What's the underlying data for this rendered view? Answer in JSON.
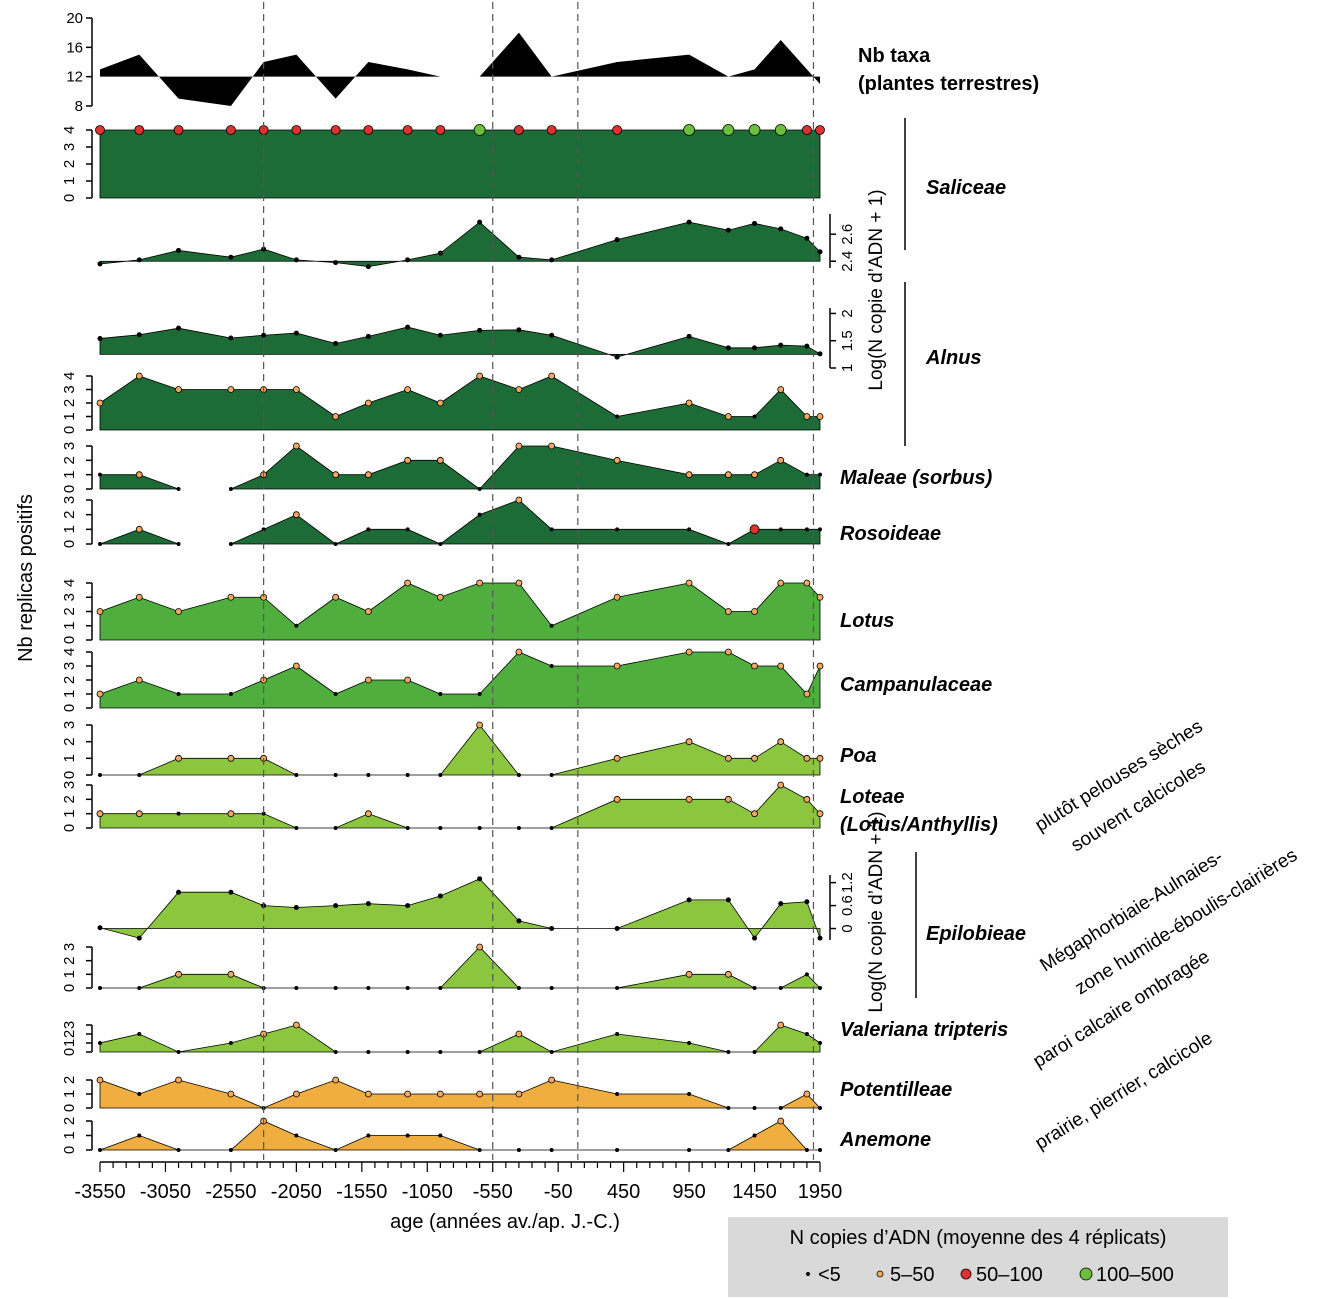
{
  "chart_data": {
    "type": "area",
    "xlabel": "age (années av./ap. J.-C.)",
    "ylabel": "Nb replicas positifs",
    "ylabel_right": "Log(N copie d’ADN + 1)",
    "x_ticks": [
      "-3550",
      "-3050",
      "-2550",
      "-2050",
      "-1550",
      "-1050",
      "-550",
      "-50",
      "450",
      "950",
      "1450",
      "1950"
    ],
    "xlim": [
      -3550,
      1950
    ],
    "x": [
      -3550,
      -3250,
      -2950,
      -2550,
      -2300,
      -2050,
      -1750,
      -1500,
      -1200,
      -950,
      -650,
      -350,
      -100,
      400,
      950,
      1250,
      1450,
      1650,
      1850,
      1950
    ],
    "vlines": [
      -2300,
      -550,
      100,
      1900
    ],
    "taxa_row": {
      "title": "Nb taxa (plantes terrestres)",
      "y_ticks": [
        "20",
        "16",
        "12",
        "8"
      ],
      "ylim": [
        8,
        20
      ],
      "baseline": 12,
      "values": [
        13,
        15,
        9,
        8,
        14,
        15,
        9,
        14,
        13,
        12,
        12,
        18,
        12,
        14,
        15,
        12,
        13,
        17,
        13,
        11
      ]
    },
    "legend": {
      "title": "N copies d’ADN (moyenne des 4 réplicats)",
      "items": [
        {
          "label": "<5",
          "code": 0,
          "color": "#000000"
        },
        {
          "label": "5–50",
          "code": 1,
          "color": "#f5a860"
        },
        {
          "label": "50–100",
          "code": 2,
          "color": "#e03030"
        },
        {
          "label": "100–500",
          "code": 3,
          "color": "#6cbf3c"
        }
      ]
    },
    "group_labels": [
      {
        "text": "plutôt pelouses sèches souvent calcicoles"
      },
      {
        "text": "Mégaphorbiaie-Aulnaies- zone humide-éboulis-clairières"
      },
      {
        "text": "paroi calcaire ombragée"
      },
      {
        "text": "prairie, pierrier, calcicole"
      }
    ],
    "series": [
      {
        "name": "Saliceae",
        "kind": "replicates",
        "color": "#1d6b37",
        "y_ticks": [
          "0",
          "1",
          "2",
          "3",
          "4"
        ],
        "ylim": [
          0,
          4
        ],
        "values": [
          4,
          4,
          4,
          4,
          4,
          4,
          4,
          4,
          4,
          4,
          4,
          4,
          4,
          4,
          4,
          4,
          4,
          4,
          4,
          4
        ],
        "dots": [
          2,
          2,
          2,
          2,
          2,
          2,
          2,
          2,
          2,
          2,
          3,
          2,
          2,
          2,
          3,
          3,
          3,
          3,
          2,
          2
        ]
      },
      {
        "name": "Saliceae",
        "kind": "log",
        "color": "#1d6b37",
        "y_ticks": [
          "2.4",
          "2.6"
        ],
        "ylim": [
          2.35,
          2.75
        ],
        "baseline": 2.4,
        "values": [
          2.38,
          2.41,
          2.48,
          2.43,
          2.49,
          2.41,
          2.39,
          2.36,
          2.41,
          2.46,
          2.69,
          2.43,
          2.41,
          2.56,
          2.69,
          2.63,
          2.68,
          2.64,
          2.57,
          2.47
        ]
      },
      {
        "name": "Alnus",
        "kind": "log",
        "color": "#1d6b37",
        "y_ticks": [
          "1",
          "1.5",
          "2"
        ],
        "ylim": [
          1,
          2.1
        ],
        "baseline": 1.25,
        "values": [
          1.54,
          1.61,
          1.73,
          1.55,
          1.6,
          1.64,
          1.45,
          1.58,
          1.75,
          1.6,
          1.69,
          1.7,
          1.6,
          1.2,
          1.58,
          1.37,
          1.37,
          1.42,
          1.4,
          1.26
        ]
      },
      {
        "name": "Alnus",
        "kind": "replicates",
        "color": "#1d6b37",
        "y_ticks": [
          "0",
          "1",
          "2",
          "3",
          "4"
        ],
        "ylim": [
          0,
          4
        ],
        "values": [
          2,
          4,
          3,
          3,
          3,
          3,
          1,
          2,
          3,
          2,
          4,
          3,
          4,
          1,
          2,
          1,
          1,
          3,
          1,
          1
        ],
        "dots": [
          1,
          1,
          1,
          1,
          1,
          1,
          1,
          1,
          1,
          1,
          1,
          1,
          1,
          0,
          1,
          1,
          0,
          1,
          1,
          1
        ]
      },
      {
        "name": "Maleae (sorbus)",
        "kind": "replicates",
        "color": "#1d6b37",
        "y_ticks": [
          "0",
          "1",
          "2",
          "3"
        ],
        "ylim": [
          0,
          3
        ],
        "values": [
          1,
          1,
          0,
          0,
          1,
          3,
          1,
          1,
          2,
          2,
          0,
          3,
          3,
          2,
          1,
          1,
          1,
          2,
          1,
          1
        ],
        "dots": [
          0,
          1,
          0,
          0,
          1,
          1,
          1,
          1,
          1,
          1,
          0,
          1,
          1,
          1,
          1,
          1,
          1,
          1,
          0,
          0
        ],
        "gaps": [
          2
        ]
      },
      {
        "name": "Rosoideae",
        "kind": "replicates",
        "color": "#1d6b37",
        "y_ticks": [
          "0",
          "1",
          "2",
          "3"
        ],
        "ylim": [
          0,
          3
        ],
        "values": [
          0,
          1,
          0,
          0,
          1,
          2,
          0,
          1,
          1,
          0,
          2,
          3,
          1,
          1,
          1,
          0,
          1,
          1,
          1,
          1
        ],
        "dots": [
          0,
          1,
          0,
          0,
          0,
          1,
          0,
          0,
          0,
          0,
          0,
          1,
          0,
          0,
          0,
          0,
          2,
          0,
          0,
          0
        ],
        "gaps": [
          2
        ]
      },
      {
        "name": "Lotus",
        "kind": "replicates",
        "color": "#4fae3d",
        "y_ticks": [
          "0",
          "1",
          "2",
          "3",
          "4"
        ],
        "ylim": [
          0,
          4
        ],
        "values": [
          2,
          3,
          2,
          3,
          3,
          1,
          3,
          2,
          4,
          3,
          4,
          4,
          1,
          3,
          4,
          2,
          2,
          4,
          4,
          3
        ],
        "dots": [
          1,
          1,
          1,
          1,
          1,
          0,
          1,
          1,
          1,
          1,
          1,
          1,
          0,
          1,
          1,
          1,
          1,
          1,
          1,
          1
        ]
      },
      {
        "name": "Campanulaceae",
        "kind": "replicates",
        "color": "#4fae3d",
        "y_ticks": [
          "0",
          "1",
          "2",
          "3",
          "4"
        ],
        "ylim": [
          0,
          4
        ],
        "values": [
          1,
          2,
          1,
          1,
          2,
          3,
          1,
          2,
          2,
          1,
          1,
          4,
          3,
          3,
          4,
          4,
          3,
          3,
          1,
          3
        ],
        "dots": [
          1,
          1,
          0,
          0,
          1,
          1,
          0,
          1,
          1,
          0,
          0,
          1,
          0,
          1,
          1,
          1,
          1,
          1,
          1,
          1
        ]
      },
      {
        "name": "Poa",
        "kind": "replicates",
        "color": "#8cc63f",
        "y_ticks": [
          "0",
          "1",
          "2",
          "3"
        ],
        "ylim": [
          0,
          3
        ],
        "values": [
          0,
          0,
          1,
          1,
          1,
          0,
          0,
          0,
          0,
          0,
          3,
          0,
          0,
          1,
          2,
          1,
          1,
          2,
          1,
          1
        ],
        "dots": [
          0,
          0,
          1,
          1,
          1,
          0,
          0,
          0,
          0,
          0,
          1,
          0,
          0,
          1,
          1,
          1,
          1,
          1,
          1,
          1
        ]
      },
      {
        "name": "Loteae (Lotus/Anthyllis)",
        "kind": "replicates",
        "color": "#8cc63f",
        "y_ticks": [
          "0",
          "1",
          "2",
          "3"
        ],
        "ylim": [
          0,
          3
        ],
        "values": [
          1,
          1,
          1,
          1,
          1,
          0,
          0,
          1,
          0,
          0,
          0,
          0,
          0,
          2,
          2,
          2,
          1,
          3,
          2,
          1
        ],
        "dots": [
          1,
          1,
          0,
          1,
          0,
          0,
          0,
          1,
          0,
          0,
          0,
          0,
          0,
          1,
          1,
          1,
          1,
          1,
          1,
          1
        ]
      },
      {
        "name": "Epilobieae",
        "kind": "log",
        "color": "#8cc63f",
        "y_ticks": [
          "0",
          "0.6",
          "1.2"
        ],
        "ylim": [
          -0.3,
          1.4
        ],
        "baseline": 0,
        "values": [
          0.02,
          -0.25,
          0.95,
          0.95,
          0.6,
          0.55,
          0.6,
          0.65,
          0.6,
          0.85,
          1.3,
          0.2,
          0,
          0,
          0.75,
          0.75,
          -0.25,
          0.65,
          0.7,
          -0.25
        ]
      },
      {
        "name": "Epilobieae",
        "kind": "replicates",
        "color": "#8cc63f",
        "y_ticks": [
          "0",
          "1",
          "2",
          "3"
        ],
        "ylim": [
          0,
          3
        ],
        "values": [
          0,
          0,
          1,
          1,
          0,
          0,
          0,
          0,
          0,
          0,
          3,
          0,
          0,
          0,
          1,
          1,
          0,
          0,
          1,
          0
        ],
        "dots": [
          0,
          0,
          1,
          1,
          0,
          0,
          0,
          0,
          0,
          0,
          1,
          0,
          0,
          0,
          1,
          1,
          0,
          0,
          0,
          0
        ]
      },
      {
        "name": "Valeriana tripteris",
        "kind": "replicates",
        "color": "#8cc63f",
        "y_ticks": [
          "0",
          "1",
          "2",
          "3"
        ],
        "ylim": [
          0,
          3
        ],
        "values": [
          1,
          2,
          0,
          1,
          2,
          3,
          0,
          0,
          0,
          0,
          0,
          2,
          0,
          2,
          1,
          0,
          0,
          3,
          2,
          1
        ],
        "dots": [
          0,
          0,
          0,
          0,
          1,
          1,
          0,
          0,
          0,
          0,
          0,
          1,
          0,
          0,
          0,
          0,
          0,
          1,
          0,
          0
        ]
      },
      {
        "name": "Potentilleae",
        "kind": "replicates",
        "color": "#f0ad40",
        "y_ticks": [
          "0",
          "1",
          "2"
        ],
        "ylim": [
          0,
          2
        ],
        "values": [
          2,
          1,
          2,
          1,
          0,
          1,
          2,
          1,
          1,
          1,
          1,
          1,
          2,
          1,
          1,
          0,
          0,
          0,
          1,
          0
        ],
        "dots": [
          1,
          0,
          1,
          1,
          0,
          1,
          1,
          1,
          1,
          1,
          1,
          1,
          1,
          0,
          0,
          0,
          0,
          0,
          1,
          0
        ]
      },
      {
        "name": "Anemone",
        "kind": "replicates",
        "color": "#f0ad40",
        "y_ticks": [
          "0",
          "1",
          "2"
        ],
        "ylim": [
          0,
          2
        ],
        "values": [
          0,
          1,
          0,
          0,
          2,
          1,
          0,
          1,
          1,
          1,
          0,
          0,
          0,
          0,
          0,
          0,
          1,
          2,
          0,
          0
        ],
        "dots": [
          0,
          0,
          0,
          0,
          1,
          0,
          0,
          0,
          0,
          0,
          0,
          0,
          0,
          0,
          0,
          0,
          0,
          1,
          0,
          0
        ]
      }
    ]
  },
  "dot_colors": [
    "#000000",
    "#f5a860",
    "#e03030",
    "#6cbf3c"
  ]
}
